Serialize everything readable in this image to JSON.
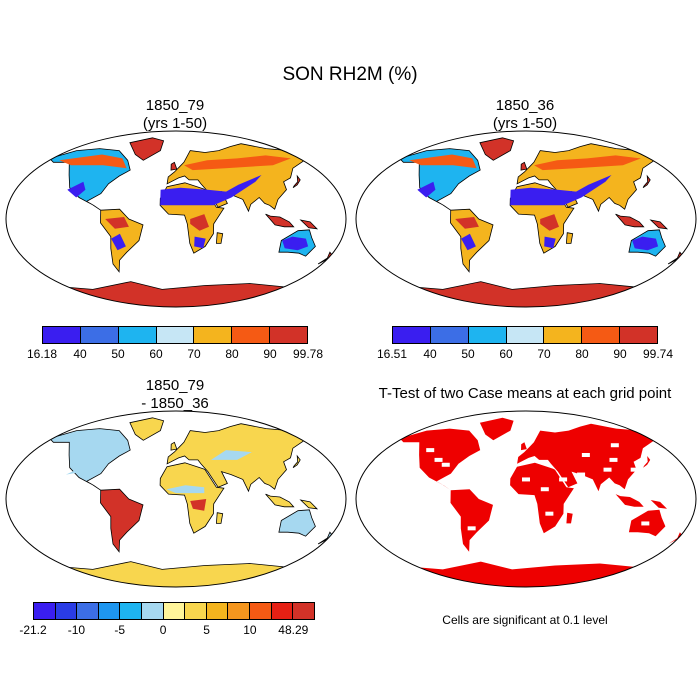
{
  "title": "SON RH2M (%)",
  "panels": {
    "top_left": {
      "title_line1": "1850_79",
      "title_line2": "(yrs 1-50)"
    },
    "top_right": {
      "title_line1": "1850_36",
      "title_line2": "(yrs 1-50)"
    },
    "bottom_left": {
      "title_line1": "1850_79",
      "title_line2": "- 1850_36"
    },
    "bottom_right": {
      "title": "T-Test of two Case means at each grid point",
      "note": "Cells are significant at 0.1 level"
    }
  },
  "colorbars": {
    "top_left": {
      "labels": [
        "16.18",
        "40",
        "50",
        "60",
        "70",
        "80",
        "90",
        "99.78"
      ],
      "colors": [
        "#3a1ef0",
        "#3c6ee6",
        "#1eb4f0",
        "#c6e6f5",
        "#f4b41e",
        "#f55a14",
        "#d23228"
      ]
    },
    "top_right": {
      "labels": [
        "16.51",
        "40",
        "50",
        "60",
        "70",
        "80",
        "90",
        "99.74"
      ],
      "colors": [
        "#3a1ef0",
        "#3c6ee6",
        "#1eb4f0",
        "#c6e6f5",
        "#f4b41e",
        "#f55a14",
        "#d23228"
      ]
    },
    "bottom_left": {
      "labels": [
        "-21.2",
        "",
        "-10",
        "",
        "-5",
        "",
        "0",
        "",
        "5",
        "",
        "10",
        "",
        "48.29"
      ],
      "colors": [
        "#3a1ef0",
        "#2a3ce6",
        "#3c6ee6",
        "#1e96f0",
        "#1eb4f0",
        "#a6d8f0",
        "#fff59a",
        "#f8d64e",
        "#f4b41e",
        "#f5961e",
        "#f55a14",
        "#e62014",
        "#d23228"
      ]
    }
  },
  "map_colors": {
    "rh_wet": "#d23228",
    "rh_moist": "#f55a14",
    "rh_mid": "#f4b41e",
    "rh_dry": "#1eb4f0",
    "rh_arid": "#3a1ef0",
    "rh_lightblue": "#c6e6f5",
    "diff_pos": "#f8d64e",
    "diff_neg": "#a6d8f0",
    "diff_strong_pos": "#d23228",
    "sig": "#ee0000"
  }
}
